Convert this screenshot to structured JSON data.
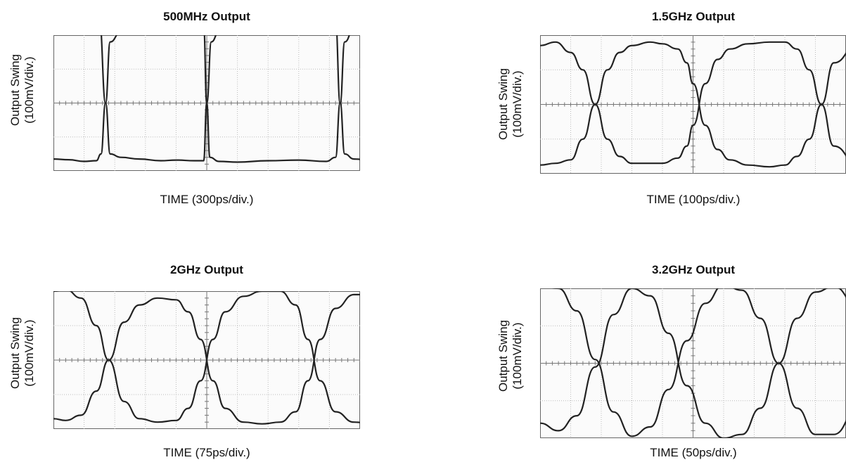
{
  "chart_data": [
    {
      "type": "line",
      "title": "500MHz Output",
      "ylabel_line1": "Output Swing",
      "ylabel_line2": "(100mV/div.)",
      "xlabel": "TIME (300ps/div.)",
      "grid": true,
      "x_divisions": 10,
      "y_divisions": 4,
      "series": [
        {
          "x": [
            0.0,
            1.4,
            1.5,
            1.7,
            1.85,
            2.2,
            2.8,
            3.5,
            4.0,
            4.6,
            4.9,
            5.0,
            5.15,
            5.4,
            6.0,
            7.0,
            8.0,
            8.9,
            9.2,
            9.35,
            9.5,
            9.8,
            10.4
          ],
          "y": [
            2.6,
            2.58,
            2.4,
            0.0,
            -1.5,
            -1.6,
            -1.65,
            -1.7,
            -1.68,
            -1.7,
            -1.7,
            0.0,
            1.8,
            2.1,
            2.3,
            2.4,
            2.45,
            2.5,
            2.4,
            0.0,
            -1.5,
            -1.65,
            -1.7
          ]
        },
        {
          "x": [
            0.0,
            0.5,
            1.0,
            1.4,
            1.55,
            1.7,
            1.85,
            2.2,
            3.0,
            4.0,
            4.6,
            4.9,
            5.0,
            5.1,
            5.4,
            6.0,
            7.0,
            8.0,
            8.9,
            9.2,
            9.35,
            9.5,
            9.8,
            10.4
          ],
          "y": [
            -1.65,
            -1.67,
            -1.72,
            -1.7,
            -1.5,
            0.0,
            1.8,
            2.1,
            2.2,
            2.3,
            2.4,
            2.3,
            0.0,
            -1.6,
            -1.72,
            -1.74,
            -1.7,
            -1.68,
            -1.72,
            -1.6,
            0.0,
            1.8,
            2.2,
            2.3
          ]
        }
      ]
    },
    {
      "type": "line",
      "title": "1.5GHz Output",
      "ylabel_line1": "Output Swing",
      "ylabel_line2": "(100mV/div.)",
      "xlabel": "TIME (100ps/div.)",
      "grid": true,
      "x_divisions": 10,
      "y_divisions": 4,
      "series": [
        {
          "x": [
            0.0,
            0.5,
            1.0,
            1.4,
            1.8,
            2.2,
            2.6,
            3.0,
            3.6,
            4.0,
            4.5,
            4.8,
            5.0,
            5.4,
            5.8,
            6.2,
            6.8,
            7.5,
            8.0,
            8.4,
            8.8,
            9.2,
            9.6,
            10.4
          ],
          "y": [
            1.7,
            1.8,
            1.5,
            1.0,
            0.0,
            -1.0,
            -1.5,
            -1.7,
            -1.7,
            -1.7,
            -1.55,
            -1.2,
            -0.6,
            0.6,
            1.3,
            1.6,
            1.75,
            1.8,
            1.8,
            1.6,
            1.0,
            0.0,
            -1.2,
            -1.75
          ]
        },
        {
          "x": [
            0.0,
            0.5,
            1.0,
            1.4,
            1.8,
            2.2,
            2.6,
            3.0,
            3.6,
            4.0,
            4.5,
            4.8,
            5.0,
            5.4,
            5.8,
            6.2,
            6.8,
            7.5,
            8.0,
            8.4,
            8.8,
            9.2,
            9.6,
            10.4
          ],
          "y": [
            -1.75,
            -1.7,
            -1.6,
            -1.0,
            0.0,
            1.0,
            1.5,
            1.7,
            1.8,
            1.75,
            1.6,
            1.2,
            0.6,
            -0.6,
            -1.3,
            -1.6,
            -1.75,
            -1.8,
            -1.75,
            -1.5,
            -1.0,
            0.0,
            1.2,
            1.75
          ]
        }
      ]
    },
    {
      "type": "line",
      "title": "2GHz Output",
      "ylabel_line1": "Output Swing",
      "ylabel_line2": "(100mV/div.)",
      "xlabel": "TIME (75ps/div.)",
      "grid": true,
      "x_divisions": 10,
      "y_divisions": 4,
      "series": [
        {
          "x": [
            0.0,
            0.4,
            0.9,
            1.4,
            1.8,
            2.3,
            2.8,
            3.4,
            4.0,
            4.4,
            4.8,
            5.2,
            5.6,
            6.2,
            6.8,
            7.4,
            7.9,
            8.3,
            8.7,
            9.2,
            9.8,
            10.4
          ],
          "y": [
            2.0,
            2.05,
            1.8,
            1.0,
            0.0,
            -1.2,
            -1.7,
            -1.8,
            -1.75,
            -1.4,
            -0.6,
            0.6,
            1.4,
            1.85,
            2.0,
            2.0,
            1.6,
            0.6,
            -0.6,
            -1.5,
            -1.8,
            -1.85
          ]
        },
        {
          "x": [
            0.0,
            0.4,
            0.9,
            1.4,
            1.8,
            2.3,
            2.8,
            3.4,
            4.0,
            4.4,
            4.8,
            5.2,
            5.6,
            6.2,
            6.8,
            7.4,
            7.9,
            8.3,
            8.7,
            9.2,
            9.8,
            10.4
          ],
          "y": [
            -1.7,
            -1.75,
            -1.6,
            -0.9,
            0.0,
            1.1,
            1.6,
            1.8,
            1.75,
            1.4,
            0.6,
            -0.6,
            -1.4,
            -1.8,
            -1.85,
            -1.8,
            -1.5,
            -0.6,
            0.6,
            1.5,
            1.9,
            1.9
          ]
        }
      ]
    },
    {
      "type": "line",
      "title": "3.2GHz Output",
      "ylabel_line1": "Output Swing",
      "ylabel_line2": "(100mV/div.)",
      "xlabel": "TIME (50ps/div.)",
      "grid": true,
      "x_divisions": 10,
      "y_divisions": 4,
      "series": [
        {
          "x": [
            0.0,
            0.6,
            1.2,
            1.8,
            2.4,
            3.0,
            3.6,
            4.2,
            4.8,
            5.4,
            6.0,
            6.6,
            7.2,
            7.8,
            8.4,
            9.0,
            9.6,
            10.4
          ],
          "y": [
            2.1,
            2.0,
            1.4,
            0.1,
            -1.3,
            -1.95,
            -1.7,
            -0.7,
            0.6,
            1.6,
            2.1,
            1.95,
            1.2,
            0.0,
            -1.2,
            -1.9,
            -1.9,
            -1.2
          ]
        },
        {
          "x": [
            0.0,
            0.6,
            1.2,
            1.8,
            2.4,
            3.0,
            3.6,
            4.2,
            4.8,
            5.4,
            6.0,
            6.6,
            7.2,
            7.8,
            8.4,
            9.0,
            9.6,
            10.4
          ],
          "y": [
            -1.6,
            -1.8,
            -1.4,
            -0.1,
            1.3,
            2.0,
            1.8,
            0.8,
            -0.6,
            -1.6,
            -2.0,
            -1.9,
            -1.2,
            0.0,
            1.2,
            1.9,
            2.05,
            1.5
          ]
        }
      ]
    }
  ]
}
